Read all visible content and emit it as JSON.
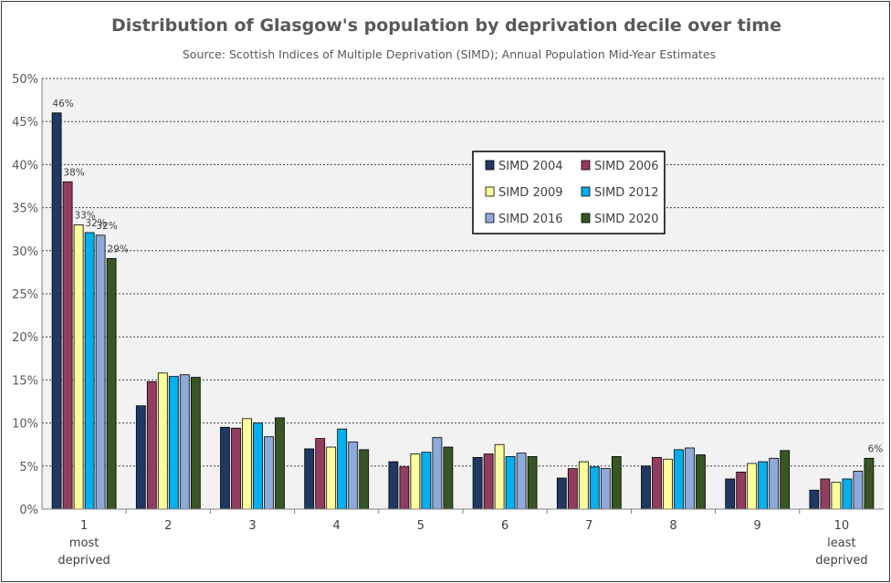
{
  "chart_data": {
    "type": "bar",
    "title": "Distribution of Glasgow's population by deprivation decile over time",
    "subtitle": "Source: Scottish Indices of Multiple Deprivation (SIMD); Annual Population Mid-Year Estimates",
    "categories": [
      "1",
      "2",
      "3",
      "4",
      "5",
      "6",
      "7",
      "8",
      "9",
      "10"
    ],
    "category_sublabels": [
      [
        "most",
        "deprived"
      ],
      [],
      [],
      [],
      [],
      [],
      [],
      [],
      [],
      [
        "least",
        "deprived"
      ]
    ],
    "ylim": [
      0,
      50
    ],
    "yticks": [
      "0%",
      "5%",
      "10%",
      "15%",
      "20%",
      "25%",
      "30%",
      "35%",
      "40%",
      "45%",
      "50%"
    ],
    "grid": true,
    "legend_position": "center-right",
    "series": [
      {
        "name": "SIMD 2004",
        "color": "#1f3864",
        "values": [
          46.0,
          12.0,
          9.5,
          7.0,
          5.5,
          6.0,
          3.6,
          5.0,
          3.5,
          2.2
        ]
      },
      {
        "name": "SIMD 2006",
        "color": "#943b60",
        "values": [
          38.0,
          14.8,
          9.4,
          8.2,
          4.9,
          6.4,
          4.7,
          6.0,
          4.3,
          3.5
        ]
      },
      {
        "name": "SIMD 2009",
        "color": "#ffff99",
        "values": [
          33.0,
          15.8,
          10.5,
          7.2,
          6.4,
          7.5,
          5.5,
          5.8,
          5.3,
          3.1
        ]
      },
      {
        "name": "SIMD 2012",
        "color": "#00b0f0",
        "values": [
          32.1,
          15.4,
          10.0,
          9.3,
          6.6,
          6.1,
          4.9,
          6.9,
          5.5,
          3.5
        ]
      },
      {
        "name": "SIMD 2016",
        "color": "#8eaadb",
        "values": [
          31.8,
          15.6,
          8.4,
          7.8,
          8.3,
          6.5,
          4.7,
          7.1,
          5.9,
          4.4
        ]
      },
      {
        "name": "SIMD 2020",
        "color": "#375623",
        "values": [
          29.1,
          15.3,
          10.6,
          6.9,
          7.2,
          6.1,
          6.1,
          6.3,
          6.8,
          5.9
        ]
      }
    ],
    "data_labels": [
      {
        "series": 0,
        "category": 0,
        "text": "46%"
      },
      {
        "series": 1,
        "category": 0,
        "text": "38%"
      },
      {
        "series": 2,
        "category": 0,
        "text": "33%"
      },
      {
        "series": 3,
        "category": 0,
        "text": "32%"
      },
      {
        "series": 4,
        "category": 0,
        "text": "32%"
      },
      {
        "series": 5,
        "category": 0,
        "text": "29%"
      },
      {
        "series": 5,
        "category": 9,
        "text": "6%"
      }
    ]
  }
}
